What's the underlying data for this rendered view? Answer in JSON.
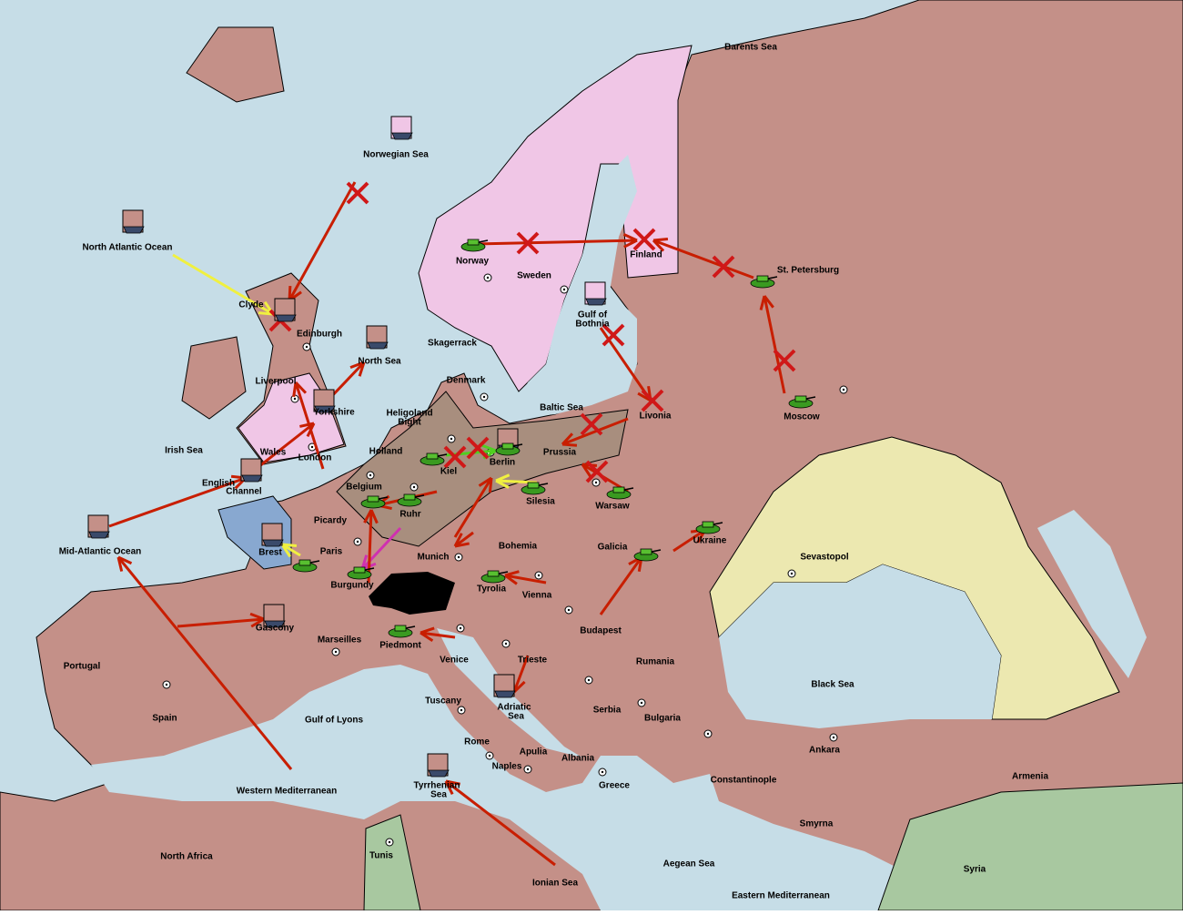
{
  "map": {
    "labels": [
      "Barents Sea",
      "Norwegian Sea",
      "North Atlantic Ocean",
      "Clyde",
      "Edinburgh",
      "Norway",
      "Sweden",
      "Finland",
      "St. Petersburg",
      "Gulf of",
      "Bothnia",
      "Skagerrack",
      "North Sea",
      "Liverpool",
      "Denmark",
      "Baltic Sea",
      "Livonia",
      "Moscow",
      "Yorkshire",
      "Heligoland",
      "Bight",
      "Irish Sea",
      "Holland",
      "Wales",
      "London",
      "Kiel",
      "Berlin",
      "Prussia",
      "English",
      "Channel",
      "Belgium",
      "Ruhr",
      "Silesia",
      "Warsaw",
      "Picardy",
      "Ukraine",
      "Paris",
      "Brest",
      "Mid-Atlantic Ocean",
      "Sevastopol",
      "Munich",
      "Bohemia",
      "Galicia",
      "Burgundy",
      "Tyrolia",
      "Vienna",
      "Gascony",
      "Budapest",
      "Marseilles",
      "Piedmont",
      "Venice",
      "Trieste",
      "Rumania",
      "Portugal",
      "Black Sea",
      "Adriatic",
      "Sea",
      "Tuscany",
      "Serbia",
      "Bulgaria",
      "Spain",
      "Gulf of Lyons",
      "Rome",
      "Apulia",
      "Ankara",
      "Albania",
      "Naples",
      "Armenia",
      "Constantinople",
      "Western Mediterranean",
      "Tyrrhenian",
      "Sea",
      "Greece",
      "Smyrna",
      "Tunis",
      "North Africa",
      "Aegean Sea",
      "Syria",
      "Ionian Sea",
      "Eastern Mediterranean"
    ]
  }
}
